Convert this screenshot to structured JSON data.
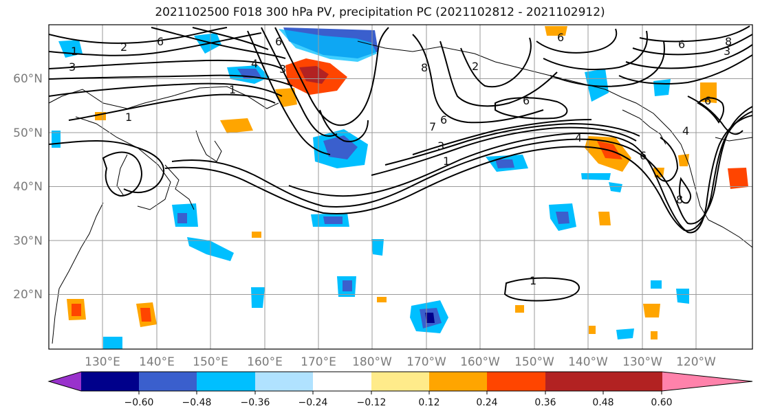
{
  "title": "2021102500 F018 300 hPa PV, precipitation PC (2021102812 - 2021102912)",
  "map": {
    "lat_ticks": [
      "20°N",
      "30°N",
      "40°N",
      "50°N",
      "60°N"
    ],
    "lon_ticks": [
      "130°E",
      "140°E",
      "150°E",
      "160°E",
      "170°E",
      "180°W",
      "170°W",
      "160°W",
      "150°W",
      "140°W",
      "130°W",
      "120°W"
    ],
    "background": "#ffffff",
    "grid_color": "#9a9a9a",
    "contour_color": "#000000",
    "pv_contour_labels": [
      "1",
      "2",
      "3",
      "4",
      "6",
      "7",
      "8"
    ]
  },
  "colorbar": {
    "ticks": [
      "−0.60",
      "−0.48",
      "−0.36",
      "−0.24",
      "−0.12",
      "0.12",
      "0.24",
      "0.36",
      "0.48",
      "0.60"
    ],
    "colors": [
      "#9932cc",
      "#00008b",
      "#3a5fcd",
      "#00bfff",
      "#b0e2ff",
      "#ffffff",
      "#ffeb8a",
      "#ffa500",
      "#ff4500",
      "#b22222",
      "#ff82ab"
    ]
  }
}
